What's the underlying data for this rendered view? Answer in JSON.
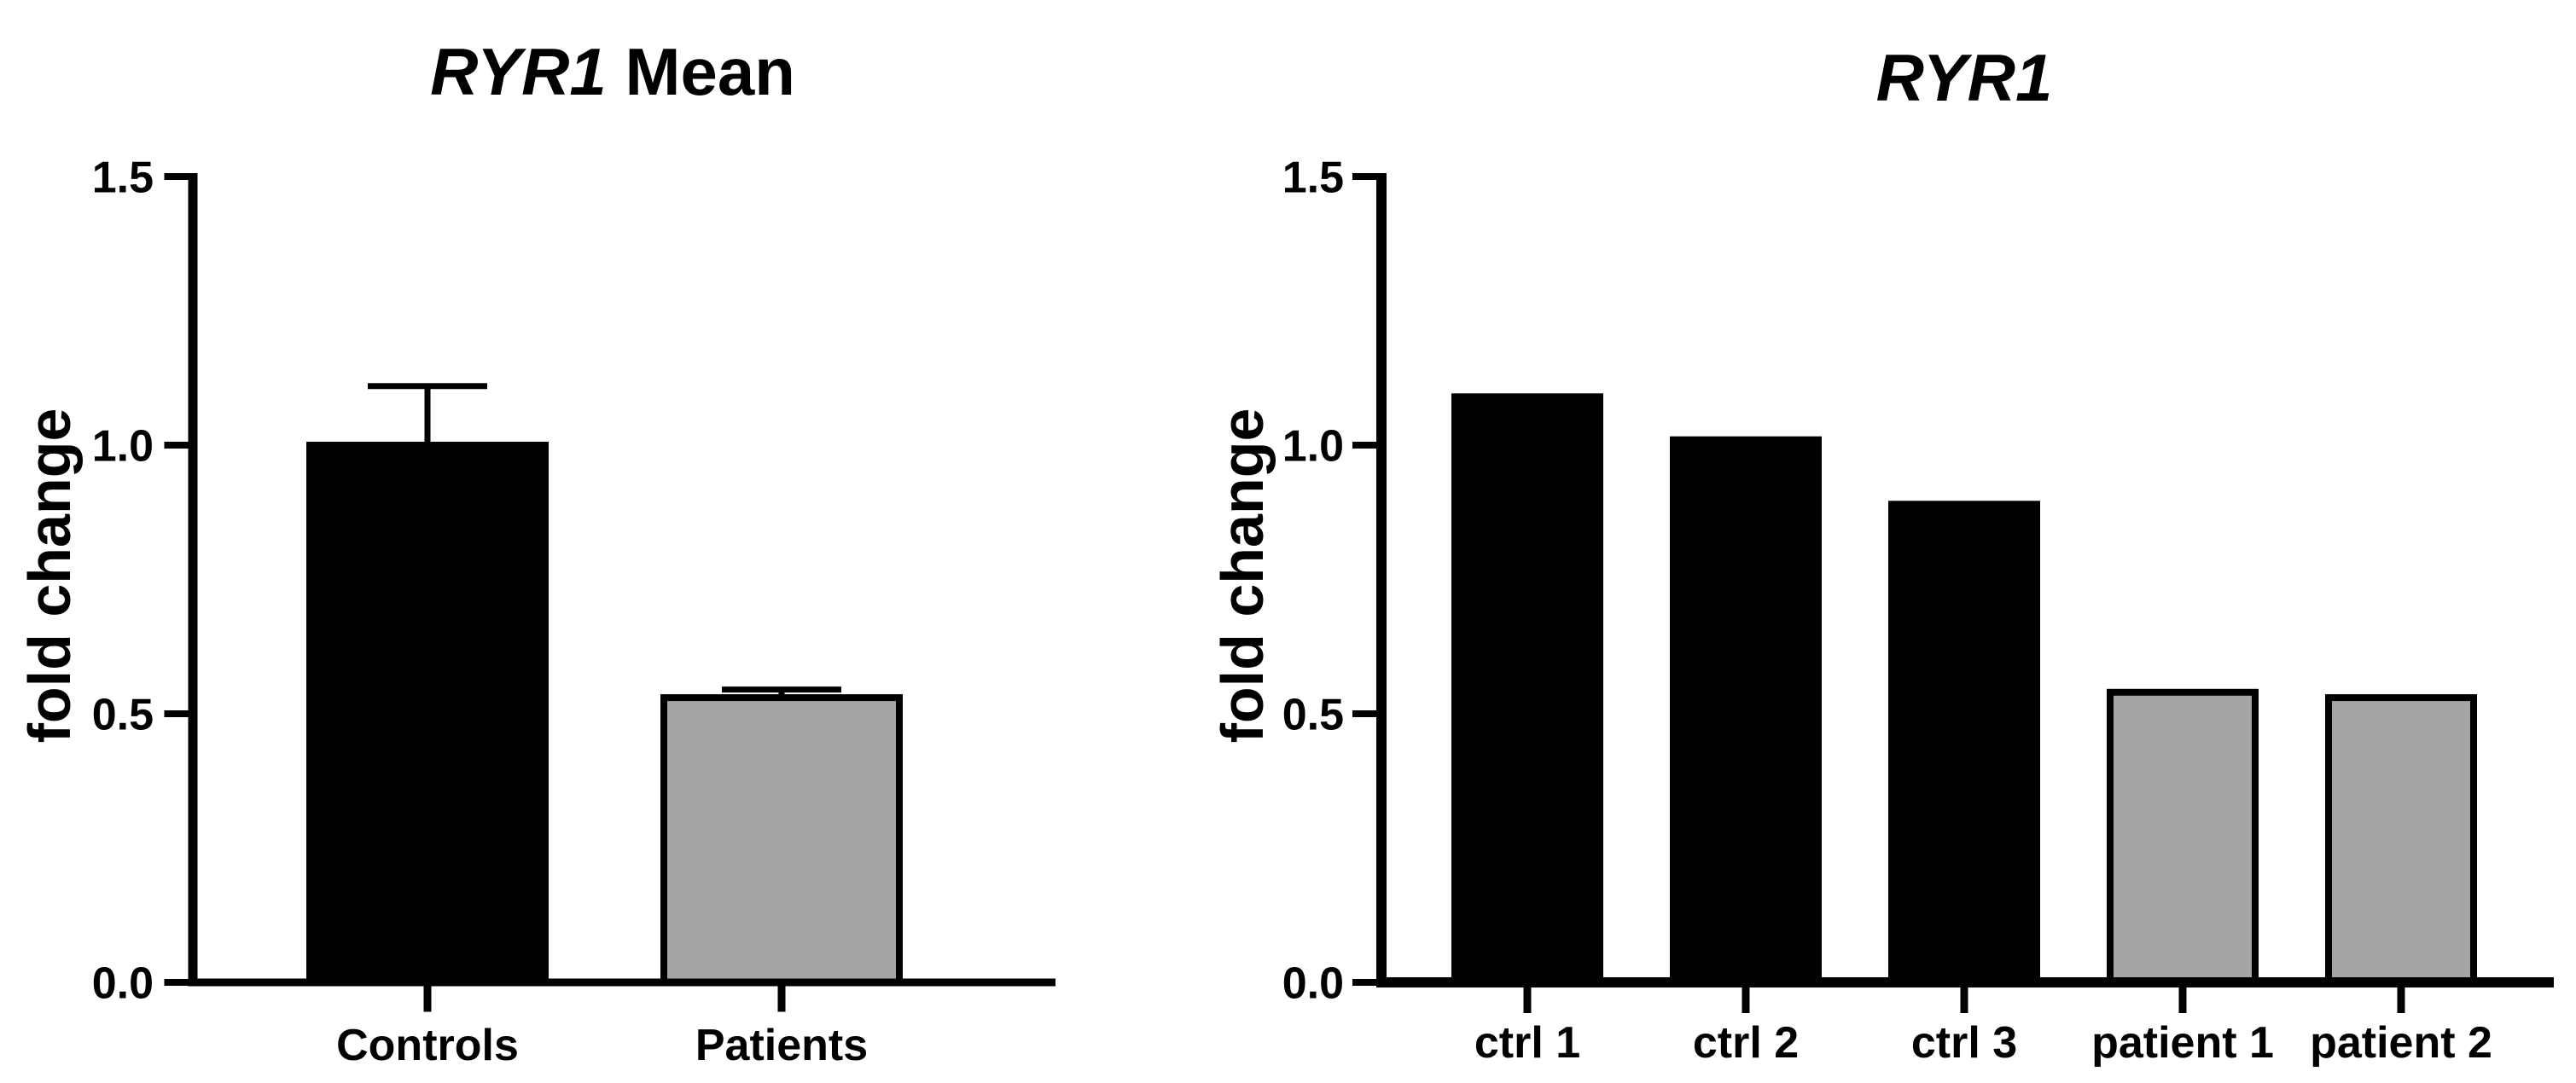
{
  "figure": {
    "background": "#ffffff",
    "text_color": "#000000",
    "axis_color": "#000000",
    "bar_black": "#000000",
    "bar_gray": "#a7a4a8"
  },
  "chart_data": [
    {
      "type": "bar",
      "title_italic": "RYR1",
      "title_regular": " Mean",
      "title_full": "RYR1 Mean",
      "xlabel": "",
      "ylabel": "fold change",
      "categories": [
        "Controls",
        "Patients"
      ],
      "values": [
        1.0,
        0.53
      ],
      "errors": [
        0.11,
        0.015
      ],
      "bar_colors": [
        "#000000",
        "#a7a4a8"
      ],
      "bar_border_color": "#000000",
      "ytick_labels": [
        "0.0",
        "0.5",
        "1.0",
        "1.5"
      ],
      "ytick_values": [
        0,
        0.5,
        1.0,
        1.5
      ],
      "ylim": [
        0,
        1.5
      ],
      "grid": false,
      "legend": null
    },
    {
      "type": "bar",
      "title_italic": "RYR1",
      "title_regular": "",
      "title_full": "RYR1",
      "xlabel": "",
      "ylabel": "fold change",
      "categories": [
        "ctrl 1",
        "ctrl 2",
        "ctrl 3",
        "patient 1",
        "patient 2"
      ],
      "values": [
        1.09,
        1.01,
        0.89,
        0.54,
        0.53
      ],
      "errors": [
        0,
        0,
        0,
        0,
        0
      ],
      "bar_colors": [
        "#000000",
        "#000000",
        "#000000",
        "#a7a4a8",
        "#a7a4a8"
      ],
      "bar_border_color": "#000000",
      "ytick_labels": [
        "0.0",
        "0.5",
        "1.0",
        "1.5"
      ],
      "ytick_values": [
        0,
        0.5,
        1.0,
        1.5
      ],
      "ylim": [
        0,
        1.5
      ],
      "grid": false,
      "legend": null
    }
  ]
}
